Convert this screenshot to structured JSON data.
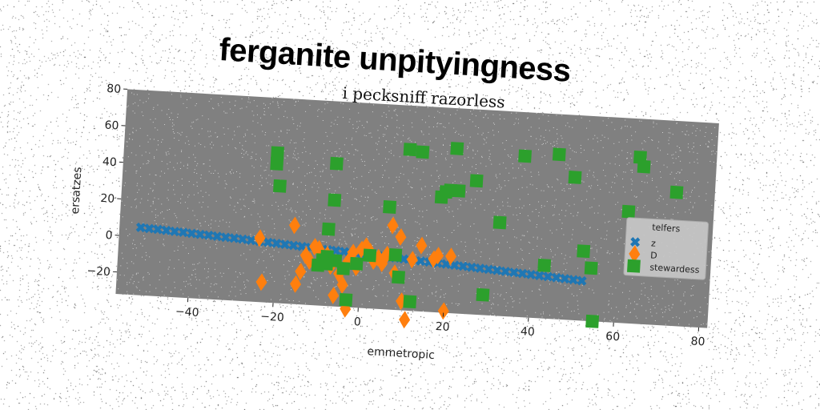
{
  "header": {
    "title": "ferganite unpityingness"
  },
  "chart_data": {
    "type": "scatter",
    "title": "i pecksniff razorless",
    "xlabel": "emmetropic",
    "ylabel": "ersatzes",
    "xlim": [
      -57,
      82
    ],
    "ylim": [
      -32,
      80
    ],
    "xticks": [
      -40,
      -20,
      0,
      20,
      40,
      60,
      80
    ],
    "yticks": [
      -20,
      0,
      20,
      40,
      60,
      80
    ],
    "xtick_labels": [
      "−40",
      "−20",
      "0",
      "20",
      "40",
      "60",
      "80"
    ],
    "ytick_labels": [
      "−20",
      "0",
      "20",
      "40",
      "60",
      "80"
    ],
    "grid": false,
    "background": "#808080",
    "legend": {
      "title": "telfers",
      "position": "right"
    },
    "series": [
      {
        "name": "z",
        "marker": "x",
        "color": "#1f77b4",
        "points": [
          [
            -52,
            5
          ],
          [
            -50,
            4.7
          ],
          [
            -48,
            4.5
          ],
          [
            -46,
            4.2
          ],
          [
            -44,
            3.9
          ],
          [
            -42,
            3.7
          ],
          [
            -40,
            3.4
          ],
          [
            -38,
            3.1
          ],
          [
            -36,
            2.9
          ],
          [
            -34,
            2.6
          ],
          [
            -32,
            2.3
          ],
          [
            -30,
            2.1
          ],
          [
            -28,
            1.8
          ],
          [
            -26,
            1.5
          ],
          [
            -24,
            1.2
          ],
          [
            -22,
            0.9
          ],
          [
            -20,
            0.6
          ],
          [
            -18,
            0.3
          ],
          [
            -16,
            0
          ],
          [
            -14,
            -0.3
          ],
          [
            -12,
            -0.6
          ],
          [
            -10,
            -0.9
          ],
          [
            -8,
            -1.2
          ],
          [
            -6,
            -1.5
          ],
          [
            -4,
            -1.8
          ],
          [
            -2,
            -2.1
          ],
          [
            0,
            -2.4
          ],
          [
            2,
            -2.7
          ],
          [
            4,
            -3
          ],
          [
            6,
            -3.3
          ],
          [
            8,
            -3.6
          ],
          [
            10,
            -3.9
          ],
          [
            12,
            -4.2
          ],
          [
            14,
            -4.5
          ],
          [
            16,
            -4.8
          ],
          [
            18,
            -5.1
          ],
          [
            20,
            -5.4
          ],
          [
            22,
            -5.7
          ],
          [
            24,
            -6
          ],
          [
            26,
            -6.3
          ],
          [
            28,
            -6.6
          ],
          [
            30,
            -6.9
          ],
          [
            32,
            -7.2
          ],
          [
            34,
            -7.5
          ],
          [
            36,
            -7.8
          ],
          [
            38,
            -8.1
          ],
          [
            40,
            -8.4
          ],
          [
            42,
            -8.7
          ],
          [
            44,
            -9
          ],
          [
            46,
            -9.3
          ],
          [
            48,
            -9.6
          ],
          [
            50,
            -9.9
          ],
          [
            52,
            -10.2
          ]
        ]
      },
      {
        "name": "D",
        "marker": "diamond",
        "color": "#ff7f0e",
        "points": [
          [
            -24,
            3
          ],
          [
            -23,
            -21
          ],
          [
            -16,
            11
          ],
          [
            -15,
            -21
          ],
          [
            -14,
            -14
          ],
          [
            -13,
            -5
          ],
          [
            -12,
            -8
          ],
          [
            -11,
            0
          ],
          [
            -10,
            -1
          ],
          [
            -9,
            -7
          ],
          [
            -8,
            -4
          ],
          [
            -7,
            -10
          ],
          [
            -6,
            -26
          ],
          [
            -5,
            -14
          ],
          [
            -4,
            -20
          ],
          [
            -3,
            -7
          ],
          [
            -3,
            -33
          ],
          [
            -2,
            -2
          ],
          [
            -1,
            -10
          ],
          [
            0,
            0
          ],
          [
            1,
            2
          ],
          [
            2,
            -1
          ],
          [
            3,
            -6
          ],
          [
            4,
            -4
          ],
          [
            5,
            -7
          ],
          [
            6,
            -2
          ],
          [
            7,
            14
          ],
          [
            8,
            -12
          ],
          [
            9,
            8
          ],
          [
            10,
            -27
          ],
          [
            11,
            -37
          ],
          [
            12,
            -4
          ],
          [
            14,
            4
          ],
          [
            17,
            -3
          ],
          [
            18,
            -1
          ],
          [
            20,
            -31
          ],
          [
            21,
            -1
          ]
        ]
      },
      {
        "name": "stewardess",
        "marker": "square",
        "color": "#2ca02c",
        "points": [
          [
            -21,
            50
          ],
          [
            -21,
            44
          ],
          [
            -20,
            32
          ],
          [
            -10,
            -10
          ],
          [
            -9,
            -7
          ],
          [
            -8,
            -5
          ],
          [
            -8,
            -9
          ],
          [
            -8,
            10
          ],
          [
            -7,
            26
          ],
          [
            -7,
            46
          ],
          [
            -6,
            -7
          ],
          [
            -4,
            -11
          ],
          [
            -3,
            -28
          ],
          [
            -1,
            -8
          ],
          [
            2,
            -3
          ],
          [
            6,
            24
          ],
          [
            8,
            -2
          ],
          [
            9,
            -14
          ],
          [
            10,
            56
          ],
          [
            12,
            -27
          ],
          [
            13,
            55
          ],
          [
            18,
            31
          ],
          [
            19,
            34
          ],
          [
            20,
            35
          ],
          [
            21,
            58
          ],
          [
            22,
            35
          ],
          [
            26,
            41
          ],
          [
            29,
            -21
          ],
          [
            32,
            19
          ],
          [
            37,
            56
          ],
          [
            43,
            -3
          ],
          [
            45,
            58
          ],
          [
            49,
            46
          ],
          [
            52,
            6
          ],
          [
            54,
            -3
          ],
          [
            55,
            -32
          ],
          [
            62,
            29
          ],
          [
            64,
            59
          ],
          [
            65,
            54
          ],
          [
            73,
            41
          ]
        ]
      }
    ]
  }
}
